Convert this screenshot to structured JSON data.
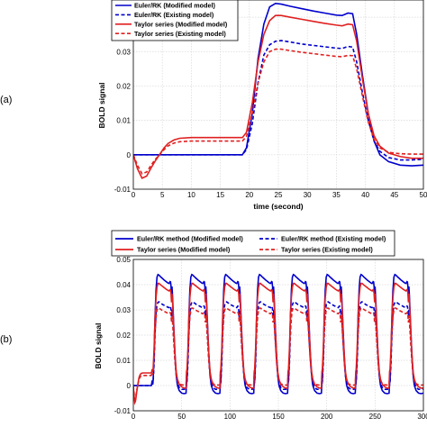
{
  "chart_data": [
    {
      "type": "line",
      "panel_label": "(a)",
      "xlabel": "time (second)",
      "ylabel": "BOLD signal",
      "xlim": [
        0,
        50
      ],
      "ylim": [
        -0.01,
        0.045
      ],
      "xticks": [
        "0",
        "5",
        "10",
        "15",
        "20",
        "25",
        "30",
        "35",
        "40",
        "45",
        "50"
      ],
      "yticks": [
        "-0.01",
        "0",
        "0.01",
        "0.02",
        "0.03",
        "0.04"
      ],
      "grid": true,
      "legend_position": "top-left",
      "series": [
        {
          "name": "Euler/RK  (Modified model)",
          "color": "#0000cc",
          "dash": "solid",
          "x": [
            0,
            2,
            4,
            6,
            8,
            10,
            12,
            14,
            16,
            17,
            18,
            18.8,
            19.5,
            20.5,
            21.5,
            22.5,
            23.5,
            24.5,
            25.5,
            27,
            29,
            31,
            33,
            35,
            36,
            37,
            37.8,
            38.5,
            39.5,
            40.5,
            41.5,
            42.5,
            44,
            46,
            48,
            50
          ],
          "y": [
            0,
            0,
            0,
            0,
            0,
            0,
            0,
            0,
            0,
            0,
            0,
            0,
            0.002,
            0.012,
            0.028,
            0.038,
            0.043,
            0.044,
            0.0438,
            0.0432,
            0.0425,
            0.0418,
            0.0412,
            0.0406,
            0.0405,
            0.0412,
            0.041,
            0.035,
            0.023,
            0.012,
            0.004,
            0,
            -0.002,
            -0.003,
            -0.0032,
            -0.003
          ]
        },
        {
          "name": "Euler/RK (Existing model)",
          "color": "#0000cc",
          "dash": "dashed",
          "x": [
            0,
            2,
            4,
            6,
            8,
            10,
            12,
            14,
            16,
            18,
            18.8,
            19.5,
            20.5,
            21.5,
            22.5,
            23.5,
            24.5,
            25.5,
            27,
            29,
            31,
            33,
            35,
            36,
            37,
            37.8,
            38.5,
            39.5,
            40.5,
            41.5,
            42.5,
            44,
            46,
            48,
            50
          ],
          "y": [
            0,
            0,
            0,
            0,
            0,
            0,
            0,
            0,
            0,
            0,
            0,
            0.0015,
            0.009,
            0.021,
            0.029,
            0.032,
            0.033,
            0.0332,
            0.0328,
            0.0322,
            0.0318,
            0.0314,
            0.031,
            0.0309,
            0.0315,
            0.0313,
            0.027,
            0.018,
            0.01,
            0.004,
            0.001,
            -0.0008,
            -0.0015,
            -0.0015,
            -0.0013
          ]
        },
        {
          "name": "Taylor series (Modified model)",
          "color": "#e02020",
          "dash": "solid",
          "x": [
            0,
            0.7,
            1.5,
            2.3,
            3,
            3.7,
            4.5,
            5.3,
            6,
            7,
            8,
            10,
            12,
            14,
            16,
            17,
            18,
            18.8,
            19.5,
            20.5,
            21.5,
            22.5,
            23.5,
            24.5,
            25.5,
            27,
            29,
            31,
            33,
            35,
            36,
            37,
            37.8,
            38.5,
            39.5,
            40.5,
            41.5,
            42.5,
            44,
            46,
            48,
            50
          ],
          "y": [
            0,
            -0.004,
            -0.0068,
            -0.0062,
            -0.004,
            -0.002,
            0,
            0.002,
            0.0033,
            0.0043,
            0.0048,
            0.005,
            0.005,
            0.005,
            0.005,
            0.005,
            0.005,
            0.005,
            0.0065,
            0.015,
            0.027,
            0.035,
            0.039,
            0.0405,
            0.0405,
            0.04,
            0.0394,
            0.0388,
            0.0382,
            0.0377,
            0.0375,
            0.038,
            0.0378,
            0.033,
            0.022,
            0.012,
            0.0055,
            0.0025,
            0.0005,
            -0.0005,
            -0.001,
            -0.001
          ]
        },
        {
          "name": "Taylor series (Existing model)",
          "color": "#e02020",
          "dash": "dashed",
          "x": [
            0,
            0.7,
            1.5,
            2.3,
            3,
            3.7,
            4.5,
            5.3,
            6,
            7,
            8,
            10,
            12,
            14,
            16,
            18,
            18.8,
            19.5,
            20.5,
            21.5,
            22.5,
            23.5,
            24.5,
            25.5,
            27,
            29,
            31,
            33,
            35,
            36,
            37,
            37.8,
            38.5,
            39.5,
            40.5,
            41.5,
            42.5,
            44,
            46,
            48,
            50
          ],
          "y": [
            0,
            -0.003,
            -0.0055,
            -0.005,
            -0.0032,
            -0.0015,
            0,
            0.0015,
            0.0026,
            0.0034,
            0.0038,
            0.004,
            0.004,
            0.004,
            0.004,
            0.004,
            0.004,
            0.0053,
            0.012,
            0.021,
            0.027,
            0.03,
            0.0307,
            0.0307,
            0.0303,
            0.0298,
            0.0294,
            0.029,
            0.0286,
            0.0285,
            0.0289,
            0.0288,
            0.025,
            0.017,
            0.0095,
            0.0045,
            0.002,
            0.0007,
            0.0003,
            0.0002,
            0.0002
          ]
        }
      ]
    },
    {
      "type": "line",
      "panel_label": "(b)",
      "ylabel": "BOLD signal",
      "xlim": [
        0,
        300
      ],
      "ylim": [
        -0.01,
        0.05
      ],
      "xticks": [
        "0",
        "50",
        "100",
        "150",
        "200",
        "250",
        "300"
      ],
      "yticks": [
        "-0.01",
        "0",
        "0.01",
        "0.02",
        "0.03",
        "0.04",
        "0.05"
      ],
      "grid": true,
      "legend_position": "top (outside, two columns)",
      "cycle_period": 35,
      "cycle_count": 8,
      "series": [
        {
          "name": "Euler/RK method (Modified model)",
          "color": "#0000cc",
          "dash": "solid"
        },
        {
          "name": "Euler/RK method (Existing model)",
          "color": "#0000cc",
          "dash": "dashed"
        },
        {
          "name": "Taylor series (Modified model)",
          "color": "#e02020",
          "dash": "solid"
        },
        {
          "name": "Taylor series (Existing model)",
          "color": "#e02020",
          "dash": "dashed"
        }
      ]
    }
  ]
}
